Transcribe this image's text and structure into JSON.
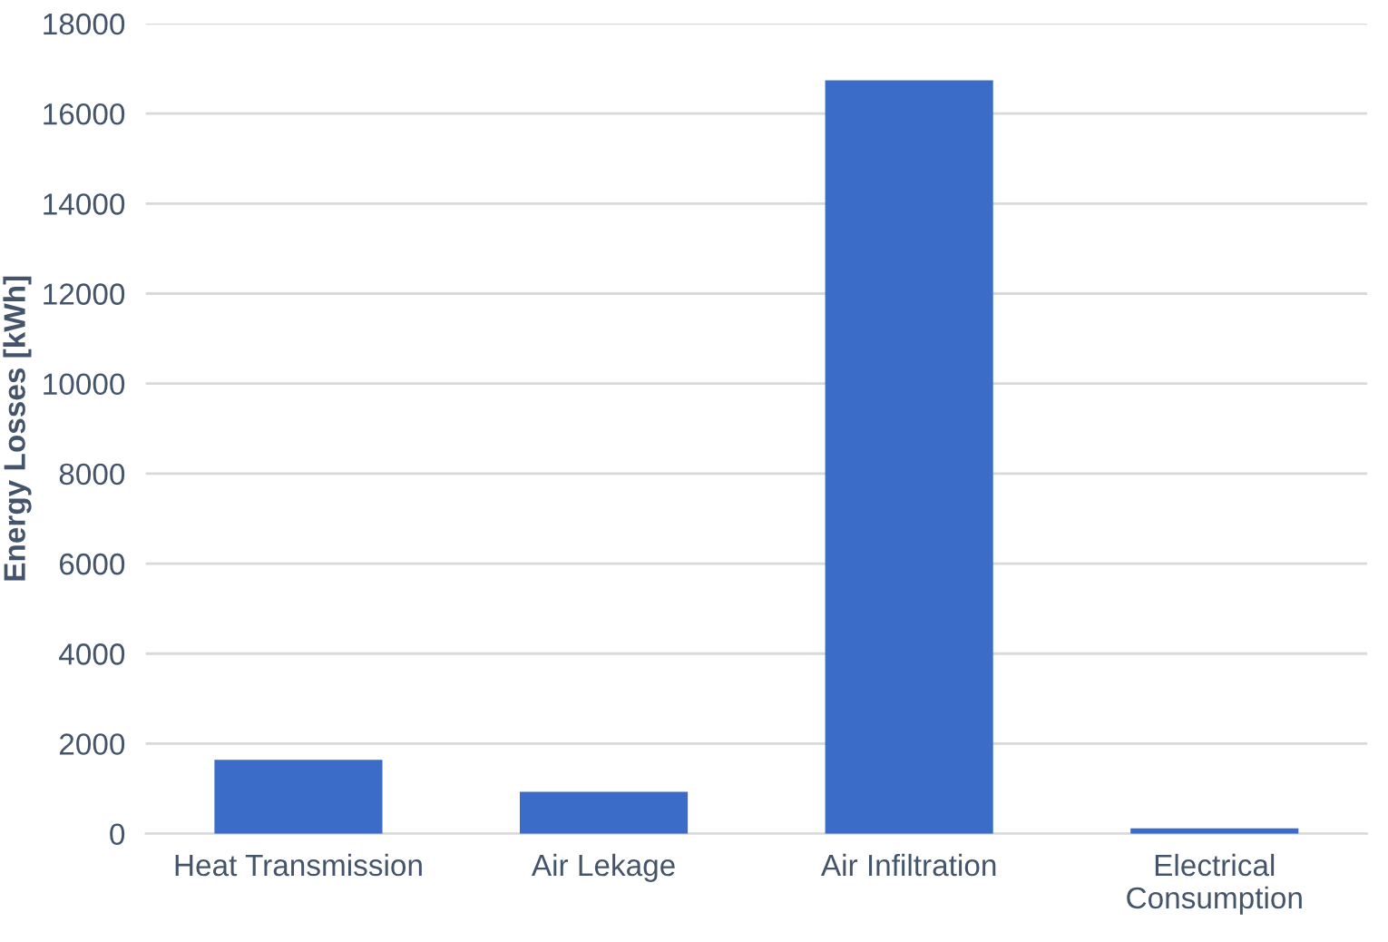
{
  "chart_data": {
    "type": "bar",
    "ylabel": "Energy Losses [kWh]",
    "categories": [
      "Heat Transmission",
      "Air Lekage",
      "Air Infiltration",
      "Electrical\nConsumption"
    ],
    "values": [
      1640,
      930,
      16740,
      120
    ],
    "color": "#3a6cc8",
    "ylim": [
      0,
      18000
    ],
    "yticks": [
      0,
      2000,
      4000,
      6000,
      8000,
      10000,
      12000,
      14000,
      16000,
      18000
    ],
    "grid": "y",
    "legend": false
  }
}
